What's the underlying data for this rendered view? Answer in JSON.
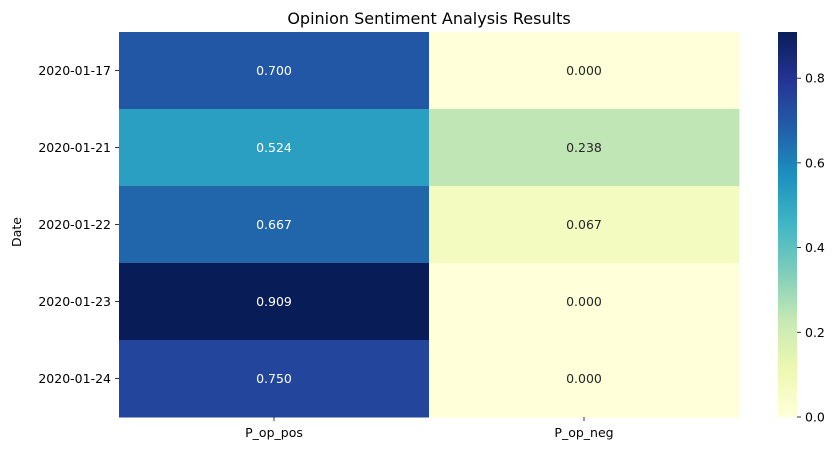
{
  "chart_data": {
    "type": "heatmap",
    "title": "Opinion Sentiment Analysis Results",
    "xlabel": "",
    "ylabel": "Date",
    "x_categories": [
      "P_op_pos",
      "P_op_neg"
    ],
    "y_categories": [
      "2020-01-17",
      "2020-01-21",
      "2020-01-22",
      "2020-01-23",
      "2020-01-24"
    ],
    "values": [
      [
        0.7,
        0.0
      ],
      [
        0.524,
        0.238
      ],
      [
        0.667,
        0.067
      ],
      [
        0.909,
        0.0
      ],
      [
        0.75,
        0.0
      ]
    ],
    "cell_labels": [
      [
        "0.700",
        "0.000"
      ],
      [
        "0.524",
        "0.238"
      ],
      [
        "0.667",
        "0.067"
      ],
      [
        "0.909",
        "0.000"
      ],
      [
        "0.750",
        "0.000"
      ]
    ],
    "colormap": "YlGnBu",
    "vmin": 0.0,
    "vmax": 0.909,
    "colorbar_ticks": [
      "0.0",
      "0.2",
      "0.4",
      "0.6",
      "0.8"
    ],
    "colorbar_tick_values": [
      0.0,
      0.2,
      0.4,
      0.6,
      0.8
    ]
  }
}
